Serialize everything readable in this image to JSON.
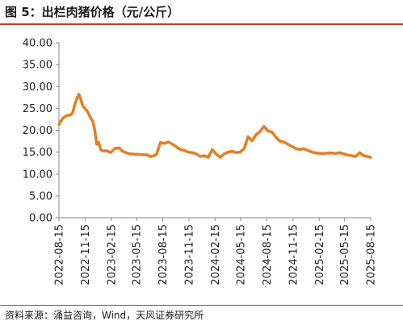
{
  "header": {
    "title": "图 5：出栏肉猪价格（元/公斤）"
  },
  "footer": {
    "source": "资料来源：涌益咨询，Wind，天风证券研究所"
  },
  "colors": {
    "series": "#E67E22",
    "rule": "#c0392b",
    "axis": "#888888"
  },
  "chart_data": {
    "type": "line",
    "title": "出栏肉猪价格（元/公斤）",
    "xlabel": "",
    "ylabel": "",
    "ylim": [
      0,
      40
    ],
    "yticks": [
      "0.00",
      "5.00",
      "10.00",
      "15.00",
      "20.00",
      "25.00",
      "30.00",
      "35.00",
      "40.00"
    ],
    "xticks": [
      "2022-08-15",
      "2022-11-15",
      "2023-02-15",
      "2023-05-15",
      "2023-08-15",
      "2023-11-15",
      "2024-02-15",
      "2024-05-15",
      "2024-08-15",
      "2024-11-15",
      "2025-02-15",
      "2025-05-15",
      "2025-08-15"
    ],
    "xrange": [
      "2022-08-15",
      "2025-08-15"
    ],
    "grid": false,
    "legend": "none",
    "series": [
      {
        "name": "",
        "x": [
          "2022-08-15",
          "2022-08-29",
          "2022-09-12",
          "2022-09-26",
          "2022-10-03",
          "2022-10-10",
          "2022-10-17",
          "2022-10-24",
          "2022-10-31",
          "2022-11-07",
          "2022-11-21",
          "2022-12-05",
          "2022-12-12",
          "2022-12-19",
          "2022-12-26",
          "2023-01-02",
          "2023-01-09",
          "2023-01-16",
          "2023-01-30",
          "2023-02-13",
          "2023-02-27",
          "2023-03-13",
          "2023-03-27",
          "2023-04-10",
          "2023-04-24",
          "2023-05-08",
          "2023-05-22",
          "2023-06-05",
          "2023-06-19",
          "2023-07-03",
          "2023-07-17",
          "2023-07-24",
          "2023-08-07",
          "2023-08-21",
          "2023-09-04",
          "2023-09-18",
          "2023-10-02",
          "2023-10-16",
          "2023-10-30",
          "2023-11-13",
          "2023-11-27",
          "2023-12-11",
          "2023-12-25",
          "2024-01-08",
          "2024-01-22",
          "2024-02-05",
          "2024-02-19",
          "2024-03-04",
          "2024-03-18",
          "2024-04-01",
          "2024-04-15",
          "2024-04-29",
          "2024-05-13",
          "2024-05-27",
          "2024-06-10",
          "2024-06-24",
          "2024-07-08",
          "2024-07-22",
          "2024-08-05",
          "2024-08-19",
          "2024-09-02",
          "2024-09-16",
          "2024-09-30",
          "2024-10-14",
          "2024-10-28",
          "2024-11-11",
          "2024-11-25",
          "2024-12-09",
          "2024-12-23",
          "2025-01-06",
          "2025-01-20",
          "2025-02-03",
          "2025-02-17",
          "2025-03-03",
          "2025-03-17",
          "2025-03-31",
          "2025-04-14",
          "2025-04-28",
          "2025-05-12",
          "2025-05-26",
          "2025-06-09",
          "2025-06-23",
          "2025-07-07",
          "2025-07-21",
          "2025-08-04",
          "2025-08-15"
        ],
        "values": [
          21.3,
          22.8,
          23.4,
          23.5,
          24.2,
          26.0,
          27.2,
          28.2,
          27.0,
          25.5,
          24.5,
          22.8,
          22.0,
          20.0,
          16.8,
          17.2,
          15.5,
          15.3,
          15.3,
          14.9,
          15.8,
          16.0,
          15.2,
          14.8,
          14.6,
          14.5,
          14.5,
          14.4,
          14.4,
          14.0,
          14.2,
          14.5,
          17.2,
          17.0,
          17.3,
          16.8,
          16.2,
          15.6,
          15.4,
          15.0,
          14.9,
          14.6,
          14.0,
          14.2,
          13.8,
          15.6,
          14.5,
          13.8,
          14.6,
          15.0,
          15.2,
          14.9,
          15.0,
          15.8,
          18.5,
          17.6,
          19.0,
          19.7,
          20.9,
          19.8,
          19.6,
          18.4,
          17.5,
          17.3,
          16.8,
          16.3,
          15.8,
          15.6,
          15.8,
          15.4,
          15.0,
          14.8,
          14.7,
          14.7,
          14.8,
          14.8,
          14.7,
          14.9,
          14.6,
          14.3,
          14.2,
          14.0,
          14.9,
          14.2,
          14.0,
          13.8
        ]
      }
    ]
  }
}
